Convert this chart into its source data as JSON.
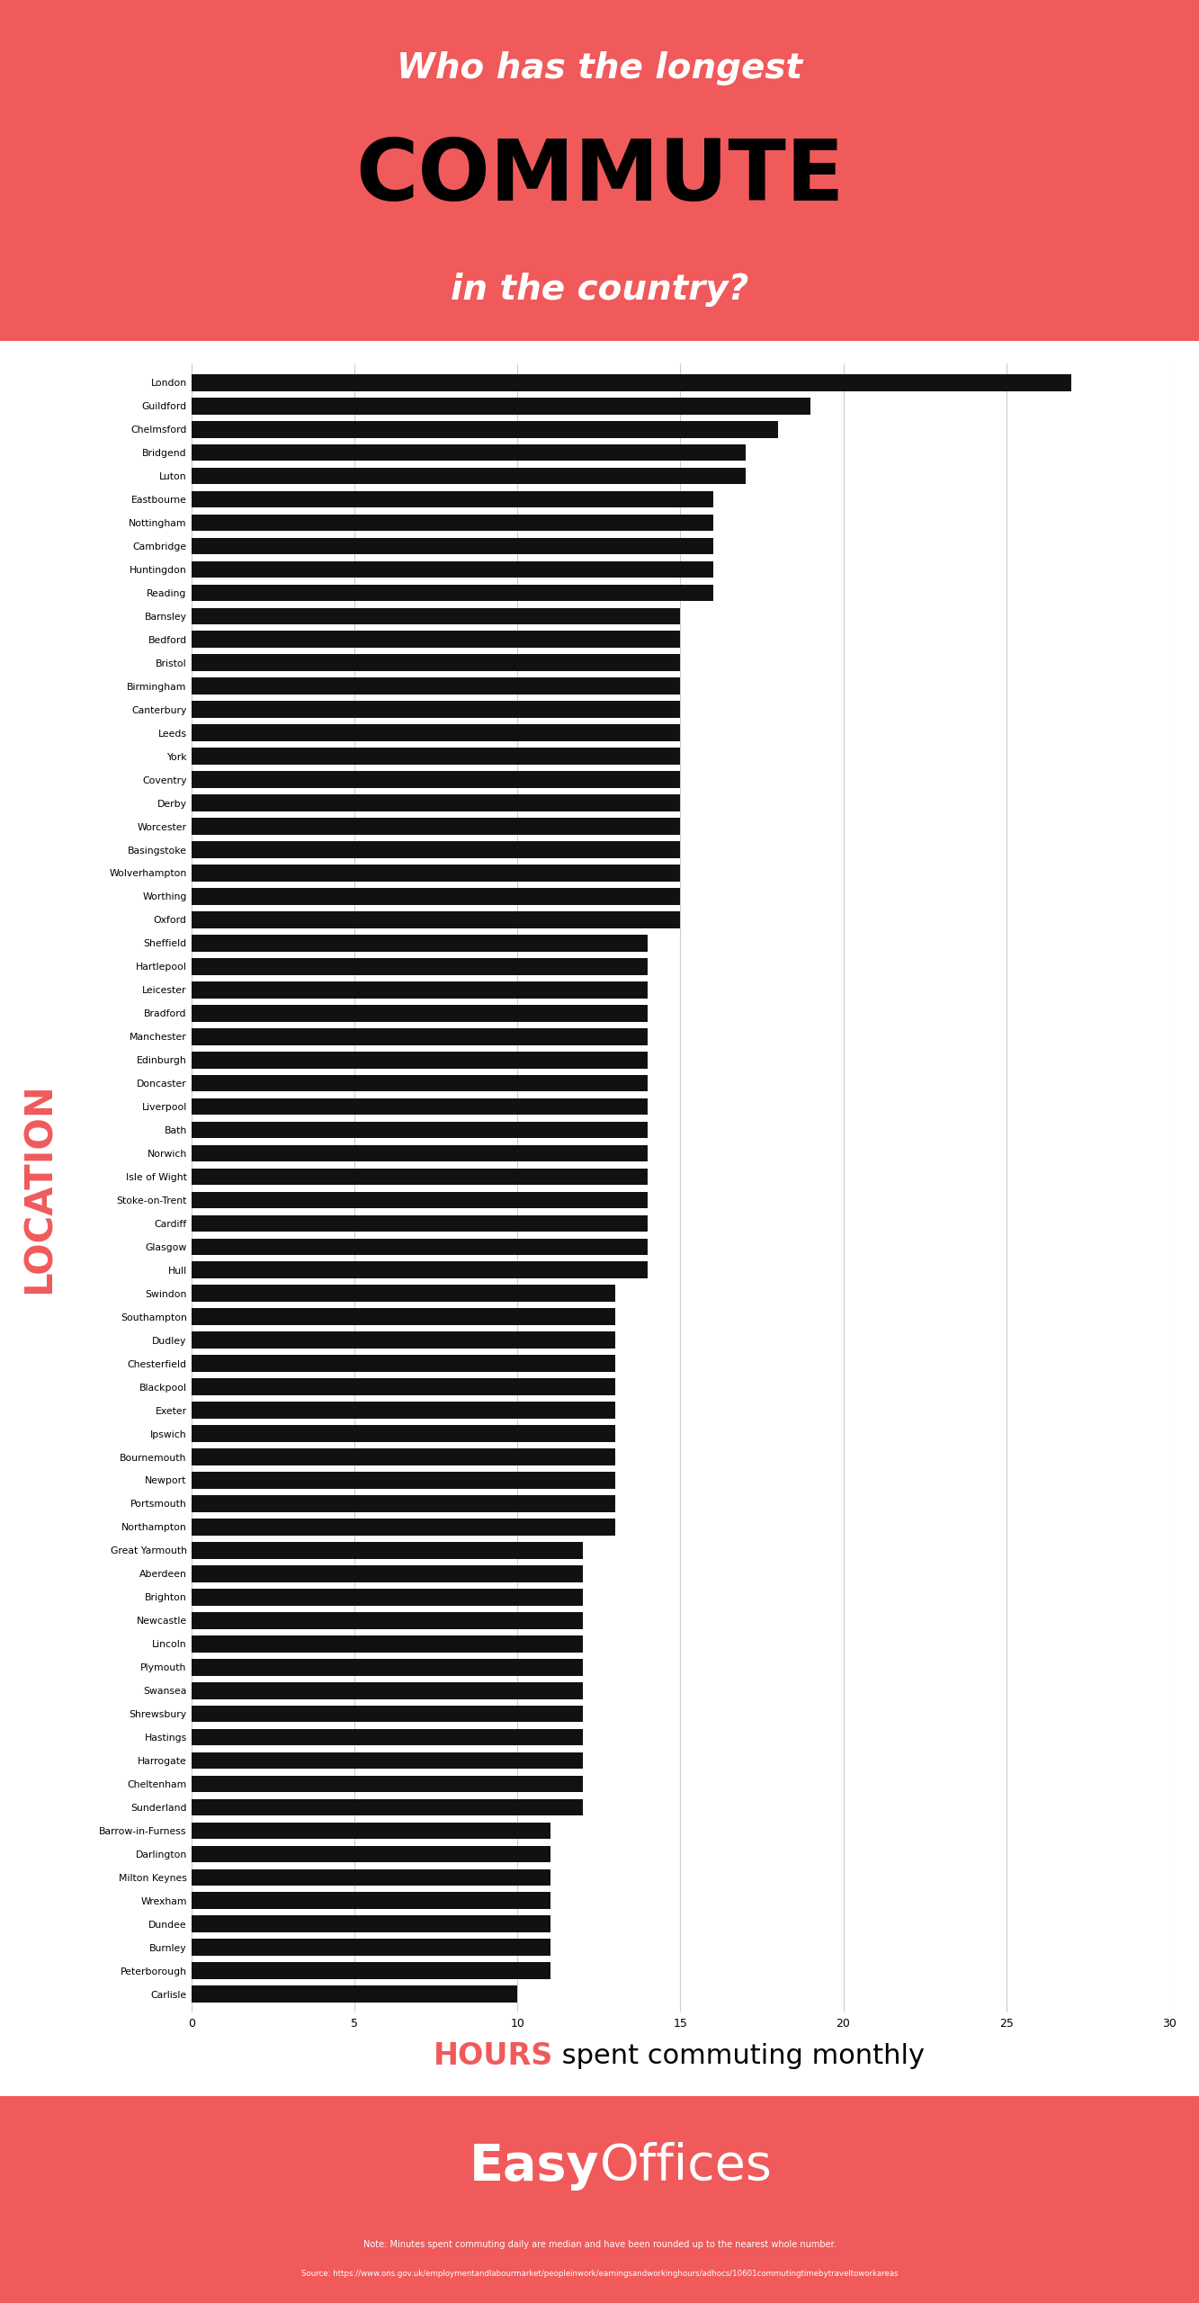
{
  "title_line1": "Who has the longest",
  "title_line2": "COMMUTE",
  "title_line3": "in the country?",
  "xlabel_bold": "HOURS",
  "xlabel_normal": " spent commuting monthly",
  "ylabel": "LOCATION",
  "background_color": "#ffffff",
  "header_color": "#f05a5b",
  "bar_color": "#111111",
  "footer_color": "#f05a5b",
  "axis_label_color": "#f05a5b",
  "text_color_white": "#ffffff",
  "text_color_black": "#000000",
  "categories": [
    "London",
    "Guildford",
    "Chelmsford",
    "Bridgend",
    "Luton",
    "Eastbourne",
    "Nottingham",
    "Cambridge",
    "Huntingdon",
    "Reading",
    "Barnsley",
    "Bedford",
    "Bristol",
    "Birmingham",
    "Canterbury",
    "Leeds",
    "York",
    "Coventry",
    "Derby",
    "Worcester",
    "Basingstoke",
    "Wolverhampton",
    "Worthing",
    "Oxford",
    "Sheffield",
    "Hartlepool",
    "Leicester",
    "Bradford",
    "Manchester",
    "Edinburgh",
    "Doncaster",
    "Liverpool",
    "Bath",
    "Norwich",
    "Isle of Wight",
    "Stoke-on-Trent",
    "Cardiff",
    "Glasgow",
    "Hull",
    "Swindon",
    "Southampton",
    "Dudley",
    "Chesterfield",
    "Blackpool",
    "Exeter",
    "Ipswich",
    "Bournemouth",
    "Newport",
    "Portsmouth",
    "Northampton",
    "Great Yarmouth",
    "Aberdeen",
    "Brighton",
    "Newcastle",
    "Lincoln",
    "Plymouth",
    "Swansea",
    "Shrewsbury",
    "Hastings",
    "Harrogate",
    "Cheltenham",
    "Sunderland",
    "Barrow-in-Furness",
    "Darlington",
    "Milton Keynes",
    "Wrexham",
    "Dundee",
    "Burnley",
    "Peterborough",
    "Carlisle"
  ],
  "values": [
    27,
    19,
    18,
    17,
    17,
    16,
    16,
    16,
    16,
    16,
    15,
    15,
    15,
    15,
    15,
    15,
    15,
    15,
    15,
    15,
    15,
    15,
    15,
    15,
    14,
    14,
    14,
    14,
    14,
    14,
    14,
    14,
    14,
    14,
    14,
    14,
    14,
    14,
    14,
    13,
    13,
    13,
    13,
    13,
    13,
    13,
    13,
    13,
    13,
    13,
    12,
    12,
    12,
    12,
    12,
    12,
    12,
    12,
    12,
    12,
    12,
    12,
    11,
    11,
    11,
    11,
    11,
    11,
    11,
    10
  ],
  "xlim": [
    0,
    30
  ],
  "xticks": [
    0,
    5,
    10,
    15,
    20,
    25,
    30
  ],
  "grid_color": "#cccccc",
  "footer_brand_bold": "Easy",
  "footer_brand_normal": "Offices",
  "note_text": "Note: Minutes spent commuting daily are median and have been rounded up to the nearest whole number.",
  "source_text": "Source: https://www.ons.gov.uk/employmentandlabourmarket/peopleinwork/earningsandworkinghours/adhocs/10601commutingtimebytraveltoworkareas"
}
